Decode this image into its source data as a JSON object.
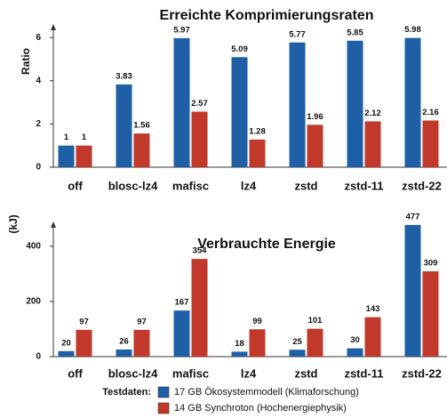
{
  "chart_data": [
    {
      "type": "bar",
      "title": "Erreichte Komprimierungsraten",
      "ylabel": "Ratio",
      "legend_title": "Testdaten:",
      "categories": [
        "off",
        "blosc-lz4",
        "mafisc",
        "lz4",
        "zstd",
        "zstd-11",
        "zstd-22"
      ],
      "series": [
        {
          "name": "17 GB Ökosystemmodell (Klimaforschung)",
          "color": "#1f5fa6",
          "values": [
            1,
            3.83,
            5.97,
            5.09,
            5.77,
            5.85,
            5.98
          ]
        },
        {
          "name": "14 GB Synchroton (Hochenergiephysik)",
          "color": "#c0392b",
          "values": [
            1,
            1.56,
            2.57,
            1.28,
            1.96,
            2.12,
            2.16
          ]
        }
      ],
      "ylim": [
        0,
        6.5
      ],
      "yticks": [
        0,
        2,
        4,
        6
      ]
    },
    {
      "type": "bar",
      "title": "Verbrauchte Energie",
      "ylabel": "(kJ)",
      "categories": [
        "off",
        "blosc-lz4",
        "mafisc",
        "lz4",
        "zstd",
        "zstd-11",
        "zstd-22"
      ],
      "series": [
        {
          "color": "#1f5fa6",
          "values": [
            20,
            26,
            167,
            18,
            25,
            30,
            477
          ]
        },
        {
          "color": "#c0392b",
          "values": [
            97,
            97,
            354,
            99,
            101,
            143,
            309
          ]
        }
      ],
      "ylim": [
        0,
        480
      ],
      "yticks": [
        0,
        200,
        400
      ]
    }
  ]
}
